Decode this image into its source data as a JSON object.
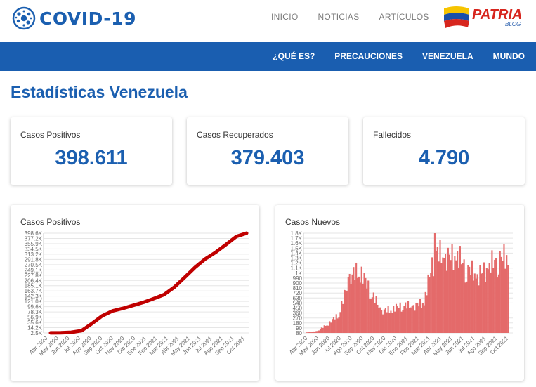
{
  "header": {
    "logo_text": "COVID-19",
    "nav": [
      "INICIO",
      "NOTICIAS",
      "ARTÍCULOS"
    ],
    "partner_name": "PATRIA",
    "partner_sub": "BLOG"
  },
  "subnav": [
    "¿QUÉ ES?",
    "PRECAUCIONES",
    "VENEZUELA",
    "MUNDO"
  ],
  "page": {
    "title": "Estadísticas Venezuela"
  },
  "stats": [
    {
      "label": "Casos Positivos",
      "value": "398.611"
    },
    {
      "label": "Casos Recuperados",
      "value": "379.403"
    },
    {
      "label": "Fallecidos",
      "value": "4.790"
    }
  ],
  "colors": {
    "primary": "#1a5eb0",
    "line": "#c00000",
    "bars": "#e46a6a"
  },
  "chart_data": [
    {
      "type": "line",
      "title": "Casos Positivos",
      "x": [
        "Abr 2020",
        "May 2020",
        "Jun 2020",
        "Jul 2020",
        "Ago 2020",
        "Sep 2020",
        "Oct 2020",
        "Nov 2020",
        "Dic 2020",
        "Ene 2021",
        "Feb 2021",
        "Mar 2021",
        "Abr 2021",
        "May 2021",
        "Jun 2021",
        "Jul 2021",
        "Ago 2021",
        "Sep 2021",
        "Oct 2021"
      ],
      "values": [
        200,
        500,
        2500,
        9000,
        37000,
        68000,
        88000,
        98000,
        110000,
        122000,
        137000,
        153000,
        183000,
        222000,
        262000,
        296000,
        322000,
        353000,
        385000
      ],
      "end_value": 398611,
      "yticks": [
        "398.6K",
        "377.2K",
        "355.9K",
        "334.5K",
        "313.2K",
        "291.8K",
        "270.5K",
        "249.1K",
        "227.8K",
        "206.4K",
        "185.1K",
        "163.7K",
        "142.3K",
        "121.0K",
        "99.6K",
        "78.3K",
        "56.9K",
        "35.6K",
        "14.2K",
        "2.5K"
      ],
      "ylim": [
        0,
        398611
      ]
    },
    {
      "type": "bar",
      "title": "Casos Nuevos",
      "x": [
        "Abr 2020",
        "May 2020",
        "Jun 2020",
        "Jul 2020",
        "Ago 2020",
        "Sep 2020",
        "Oct 2020",
        "Nov 2020",
        "Dic 2020",
        "Ene 2021",
        "Feb 2021",
        "Mar 2021",
        "Abr 2021",
        "May 2021",
        "Jun 2021",
        "Jul 2021",
        "Ago 2021",
        "Sep 2021",
        "Oct 2021"
      ],
      "monthly_daily_avg": [
        10,
        30,
        150,
        300,
        900,
        1000,
        650,
        350,
        380,
        450,
        420,
        500,
        1300,
        1200,
        1250,
        1050,
        900,
        1050,
        1200
      ],
      "peak": 1800,
      "yticks": [
        "1.8K",
        "1.7K",
        "1.6K",
        "1.5K",
        "1.4K",
        "1.3K",
        "1.2K",
        "1.1K",
        "1K",
        "990",
        "900",
        "810",
        "720",
        "630",
        "540",
        "450",
        "360",
        "270",
        "180",
        "90",
        "80"
      ],
      "ylim": [
        0,
        1800
      ]
    }
  ]
}
